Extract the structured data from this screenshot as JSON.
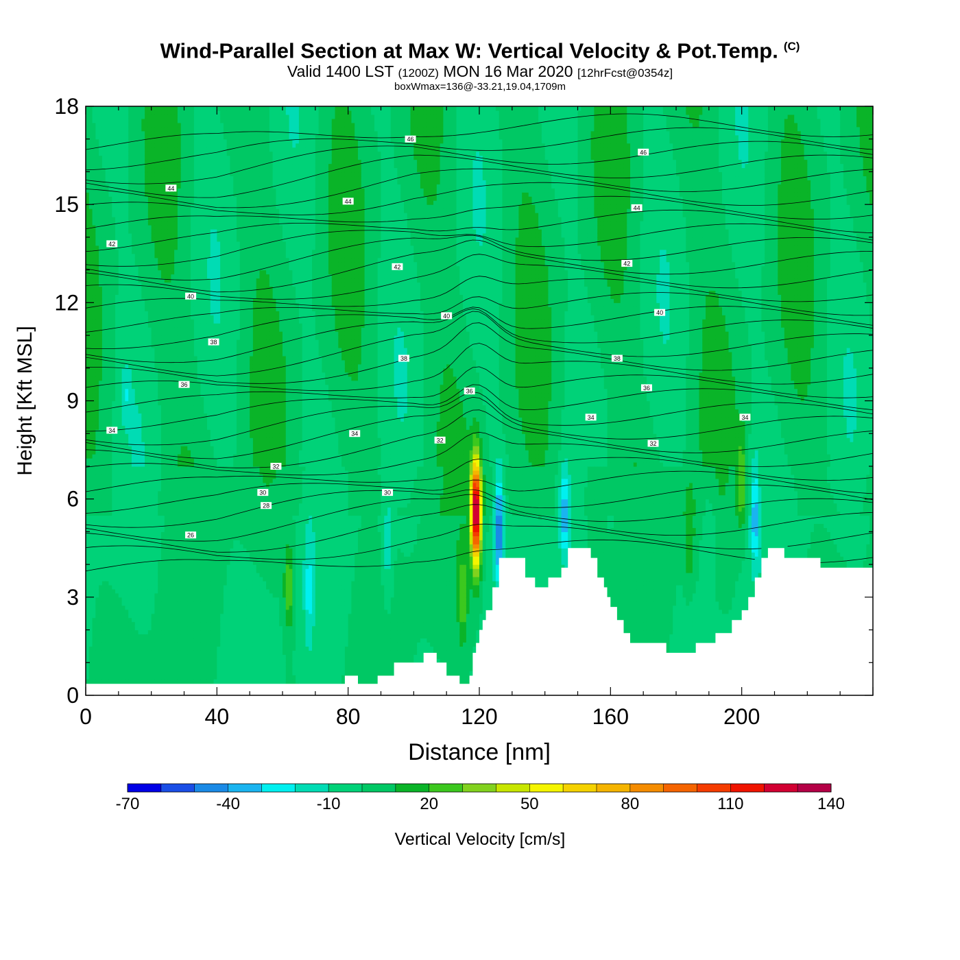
{
  "title": {
    "main": "Wind-Parallel Section at Max W: Vertical Velocity & Pot.Temp.",
    "copyright": "(C)",
    "valid": "Valid 1400 LST",
    "utc": "(1200Z)",
    "date": "MON 16 Mar 2020",
    "forecast": "[12hrFcst@0354z]",
    "box_wmax": "boxWmax=136@-33.21,19.04,1709m"
  },
  "chart_data": {
    "type": "heatmap",
    "xlabel": "Distance [nm]",
    "ylabel": "Height [Kft MSL]",
    "xlim": [
      0,
      240
    ],
    "ylim": [
      0,
      18
    ],
    "x_ticks": [
      "0",
      "40",
      "80",
      "120",
      "160",
      "200"
    ],
    "x_tick_values": [
      0,
      40,
      80,
      120,
      160,
      200
    ],
    "y_ticks": [
      "0",
      "3",
      "6",
      "9",
      "12",
      "15",
      "18"
    ],
    "y_tick_values": [
      0,
      3,
      6,
      9,
      12,
      15,
      18
    ],
    "colorbar": {
      "label": "Vertical Velocity [cm/s]",
      "tick_labels": [
        "-70",
        "-40",
        "-10",
        "20",
        "50",
        "80",
        "110",
        "140"
      ],
      "tick_values": [
        -70,
        -40,
        -10,
        20,
        50,
        80,
        110,
        140
      ],
      "levels": [
        -70,
        -60,
        -50,
        -40,
        -30,
        -20,
        -10,
        0,
        10,
        20,
        30,
        40,
        50,
        60,
        70,
        80,
        90,
        100,
        110,
        120,
        130,
        140
      ],
      "colors": [
        "#0000e6",
        "#1a4ee6",
        "#1a8ae6",
        "#1ab4f0",
        "#00f0f0",
        "#00dcb4",
        "#00d278",
        "#00c864",
        "#0ab428",
        "#3cc81e",
        "#82d21e",
        "#c8e600",
        "#f5f500",
        "#f5d200",
        "#f5b400",
        "#f58c00",
        "#f56400",
        "#f53c00",
        "#f01400",
        "#d20032",
        "#b40046"
      ]
    },
    "theta_contour_labels": [
      "26",
      "28",
      "30",
      "32",
      "34",
      "36",
      "38",
      "40",
      "42",
      "44",
      "46"
    ],
    "vertical_velocity_max": 136,
    "max_updraft": {
      "x": 119,
      "y": 5.5
    },
    "terrain_kft": [
      [
        0,
        0.35
      ],
      [
        78,
        0.35
      ],
      [
        79,
        0.6
      ],
      [
        82,
        0.6
      ],
      [
        83,
        0.35
      ],
      [
        88,
        0.35
      ],
      [
        89,
        0.6
      ],
      [
        93,
        0.6
      ],
      [
        94,
        1.0
      ],
      [
        102,
        1.0
      ],
      [
        103,
        1.3
      ],
      [
        106,
        1.3
      ],
      [
        107,
        1.0
      ],
      [
        109,
        1.0
      ],
      [
        110,
        0.6
      ],
      [
        113,
        0.6
      ],
      [
        114,
        0.35
      ],
      [
        116,
        0.35
      ],
      [
        117,
        0.6
      ],
      [
        118,
        1.3
      ],
      [
        119,
        1.6
      ],
      [
        120,
        2.0
      ],
      [
        121,
        2.3
      ],
      [
        122,
        2.6
      ],
      [
        124,
        3.3
      ],
      [
        126,
        4.2
      ],
      [
        132,
        4.2
      ],
      [
        134,
        3.6
      ],
      [
        137,
        3.3
      ],
      [
        140,
        3.3
      ],
      [
        141,
        3.6
      ],
      [
        144,
        3.6
      ],
      [
        145,
        3.9
      ],
      [
        147,
        4.5
      ],
      [
        152,
        4.5
      ],
      [
        154,
        4.2
      ],
      [
        156,
        3.6
      ],
      [
        158,
        3.3
      ],
      [
        159,
        3.0
      ],
      [
        160,
        2.7
      ],
      [
        162,
        2.3
      ],
      [
        164,
        1.9
      ],
      [
        166,
        1.6
      ],
      [
        175,
        1.6
      ],
      [
        177,
        1.3
      ],
      [
        185,
        1.3
      ],
      [
        186,
        1.6
      ],
      [
        191,
        1.6
      ],
      [
        192,
        1.9
      ],
      [
        196,
        1.9
      ],
      [
        197,
        2.3
      ],
      [
        200,
        2.6
      ],
      [
        202,
        3.0
      ],
      [
        204,
        3.6
      ],
      [
        206,
        4.2
      ],
      [
        208,
        4.5
      ],
      [
        212,
        4.5
      ],
      [
        213,
        4.2
      ],
      [
        223,
        4.2
      ],
      [
        224,
        3.9
      ],
      [
        240,
        3.9
      ]
    ]
  }
}
